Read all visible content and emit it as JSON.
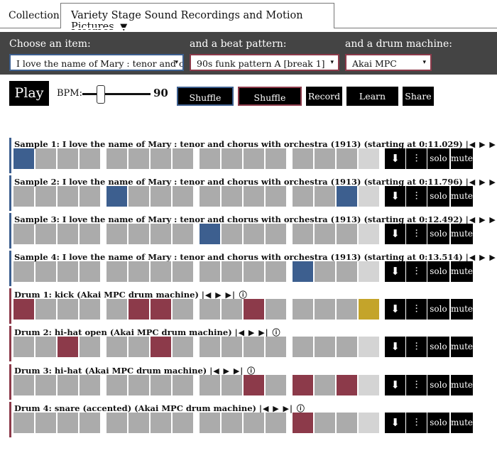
{
  "collection": {
    "label": "Collection:",
    "value": "Variety Stage Sound Recordings and Motion Pictures",
    "arrow": "▼"
  },
  "controls": {
    "item_heading": "Choose an item:",
    "item_value": "I love the name of Mary : tenor and ch",
    "pattern_heading": "and a beat pattern:",
    "pattern_value": "90s funk pattern A [break 1]",
    "machine_heading": "and a drum machine:",
    "machine_value": "Akai MPC",
    "caret": "▾"
  },
  "toolbar": {
    "play_label": "Play",
    "bpm_label": "BPM:",
    "bpm_value": "90",
    "shuffle_item_label": "Shuffle item",
    "shuffle_drums_label": "Shuffle drums",
    "record_label": "Record",
    "learn_more_label": "Learn more",
    "share_label": "Share"
  },
  "colors": {
    "sample_accent": "#3d5f8f",
    "drum_accent": "#8c3a4a",
    "gold_accent": "#c4a42a",
    "pad_off": "#ababab",
    "pad_light": "#d4d4d4"
  },
  "track_controls": {
    "playback_glyphs": "|◀ ▶ ▶| ⓘ",
    "download_icon": "⬇",
    "mixer_icon": "⫶",
    "solo_label": "solo",
    "mute_label": "mute"
  },
  "tracks": [
    {
      "title": "Sample 1: I love the name of Mary : tenor and chorus with orchestra (1913) (starting at 0:11.029)",
      "kind": "sample",
      "pads": [
        "blue",
        "off",
        "off",
        "off",
        "off",
        "off",
        "off",
        "off",
        "off",
        "off",
        "off",
        "off",
        "off",
        "off",
        "off",
        "light"
      ]
    },
    {
      "title": "Sample 2: I love the name of Mary : tenor and chorus with orchestra (1913) (starting at 0:11.796)",
      "kind": "sample",
      "pads": [
        "off",
        "off",
        "off",
        "off",
        "blue",
        "off",
        "off",
        "off",
        "off",
        "off",
        "off",
        "off",
        "off",
        "off",
        "blue",
        "light"
      ]
    },
    {
      "title": "Sample 3: I love the name of Mary : tenor and chorus with orchestra (1913) (starting at 0:12.492)",
      "kind": "sample",
      "pads": [
        "off",
        "off",
        "off",
        "off",
        "off",
        "off",
        "off",
        "off",
        "blue",
        "off",
        "off",
        "off",
        "off",
        "off",
        "off",
        "light"
      ]
    },
    {
      "title": "Sample 4: I love the name of Mary : tenor and chorus with orchestra (1913) (starting at 0:13.514)",
      "kind": "sample",
      "pads": [
        "off",
        "off",
        "off",
        "off",
        "off",
        "off",
        "off",
        "off",
        "off",
        "off",
        "off",
        "off",
        "blue",
        "off",
        "off",
        "light"
      ]
    },
    {
      "title": "Drum 1: kick (Akai MPC drum machine)",
      "kind": "drum",
      "pads": [
        "red",
        "off",
        "off",
        "off",
        "off",
        "red",
        "red",
        "off",
        "off",
        "off",
        "red",
        "off",
        "off",
        "off",
        "off",
        "gold"
      ]
    },
    {
      "title": "Drum 2: hi-hat open (Akai MPC drum machine)",
      "kind": "drum",
      "pads": [
        "off",
        "off",
        "red",
        "off",
        "off",
        "off",
        "red",
        "off",
        "off",
        "off",
        "off",
        "off",
        "off",
        "off",
        "off",
        "light"
      ]
    },
    {
      "title": "Drum 3: hi-hat (Akai MPC drum machine)",
      "kind": "drum",
      "pads": [
        "off",
        "off",
        "off",
        "off",
        "off",
        "off",
        "off",
        "off",
        "off",
        "off",
        "red",
        "off",
        "red",
        "off",
        "red",
        "light"
      ]
    },
    {
      "title": "Drum 4: snare (accented) (Akai MPC drum machine)",
      "kind": "drum",
      "pads": [
        "off",
        "off",
        "off",
        "off",
        "off",
        "off",
        "off",
        "off",
        "off",
        "off",
        "off",
        "off",
        "red",
        "off",
        "off",
        "light"
      ]
    }
  ]
}
